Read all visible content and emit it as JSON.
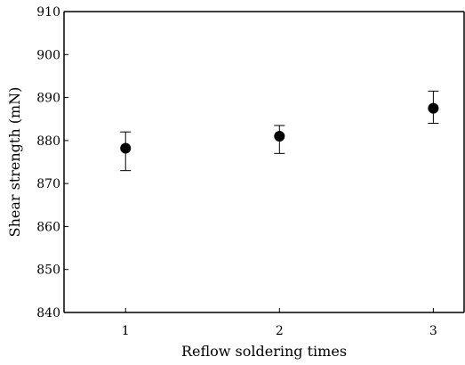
{
  "chart_data": {
    "type": "scatter",
    "title": "",
    "xlabel": "Reflow soldering times",
    "ylabel": "Shear strength (mN)",
    "x": [
      1,
      2,
      3
    ],
    "x_tick_labels": [
      "1",
      "2",
      "3"
    ],
    "y_ticks": [
      840,
      850,
      860,
      870,
      880,
      890,
      900,
      910
    ],
    "y_tick_labels": [
      "840",
      "850",
      "860",
      "870",
      "880",
      "890",
      "900",
      "910"
    ],
    "xlim": [
      0.6,
      3.2
    ],
    "ylim": [
      840,
      910
    ],
    "grid": false,
    "series": [
      {
        "values": [
          878.2,
          881.0,
          887.5
        ],
        "error_low": [
          873.0,
          877.0,
          884.0
        ],
        "error_high": [
          882.0,
          883.5,
          891.5
        ]
      }
    ],
    "colors": {
      "marker": "#000000",
      "axis": "#000000"
    }
  }
}
